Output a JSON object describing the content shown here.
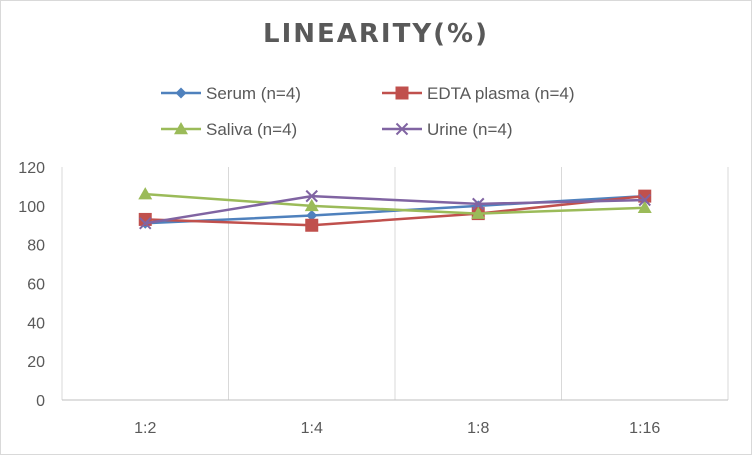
{
  "chart_data": {
    "type": "line",
    "title": "LINEARITY(%)",
    "xlabel": "",
    "ylabel": "",
    "categories": [
      "1:2",
      "1:4",
      "1:8",
      "1:16"
    ],
    "ylim": [
      0,
      120
    ],
    "yticks": [
      0,
      20,
      40,
      60,
      80,
      100,
      120
    ],
    "grid": "vertical",
    "legend_position": "top",
    "series": [
      {
        "name": "Serum (n=4)",
        "values": [
          91,
          95,
          100,
          105
        ],
        "color": "#4f81bd",
        "marker": "diamond"
      },
      {
        "name": "EDTA plasma (n=4)",
        "values": [
          93,
          90,
          96,
          105
        ],
        "color": "#c0504d",
        "marker": "square"
      },
      {
        "name": "Saliva (n=4)",
        "values": [
          106,
          100,
          96,
          99
        ],
        "color": "#9bbb59",
        "marker": "triangle"
      },
      {
        "name": "Urine (n=4)",
        "values": [
          91,
          105,
          101,
          103
        ],
        "color": "#8064a2",
        "marker": "x"
      }
    ]
  }
}
